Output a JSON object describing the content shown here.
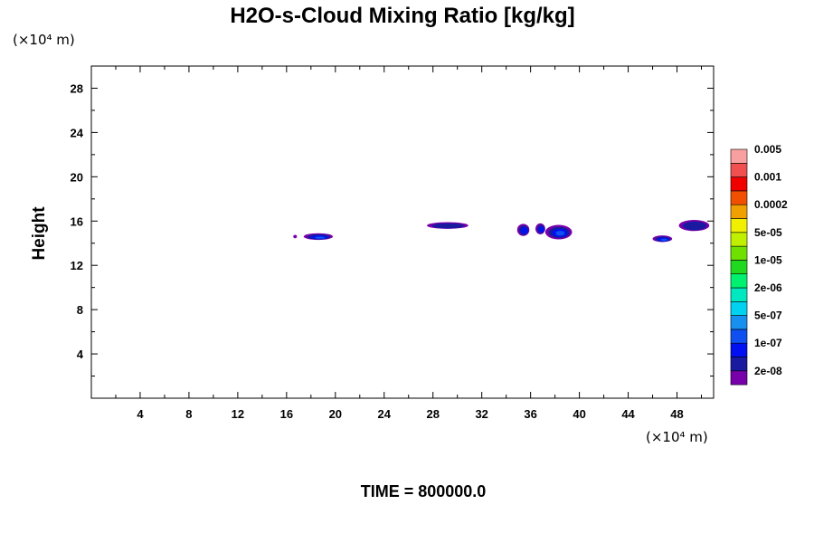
{
  "chart_data": {
    "type": "contour",
    "title": "H2O-s-Cloud Mixing Ratio [kg/kg]",
    "ylabel": "Height",
    "xlabel": "",
    "x_unit": "(×10⁴ m)",
    "y_unit": "(×10⁴ m)",
    "footer": "TIME = 800000.0",
    "xlim": [
      0,
      51
    ],
    "ylim": [
      0,
      30
    ],
    "x_ticks": [
      4,
      8,
      12,
      16,
      20,
      24,
      28,
      32,
      36,
      40,
      44,
      48
    ],
    "y_ticks": [
      4,
      8,
      12,
      16,
      20,
      24,
      28
    ],
    "grid": false,
    "colorbar": {
      "colors": [
        "#7700aa",
        "#1a1aa0",
        "#0010f0",
        "#1050f0",
        "#1890f0",
        "#00d2f0",
        "#00e8c0",
        "#00f070",
        "#20d820",
        "#70e000",
        "#c0f000",
        "#f0f000",
        "#f0a000",
        "#f05000",
        "#f00000",
        "#f05050",
        "#f8a0a0"
      ],
      "labels": [
        "2e-08",
        "1e-07",
        "5e-07",
        "2e-06",
        "1e-05",
        "5e-05",
        "0.0002",
        "0.001",
        "0.005"
      ]
    },
    "cloud_patches": [
      {
        "x": 16.7,
        "y": 14.6,
        "width": 0.3,
        "height": 0.3,
        "level": 0
      },
      {
        "x": 18.6,
        "y": 14.6,
        "width": 2.4,
        "height": 0.6,
        "level": 3
      },
      {
        "x": 29.2,
        "y": 15.6,
        "width": 3.4,
        "height": 0.6,
        "level": 1
      },
      {
        "x": 35.4,
        "y": 15.2,
        "width": 1.0,
        "height": 1.1,
        "level": 2
      },
      {
        "x": 36.8,
        "y": 15.3,
        "width": 0.8,
        "height": 1.0,
        "level": 2
      },
      {
        "x": 38.3,
        "y": 15.0,
        "width": 2.2,
        "height": 1.3,
        "level": 3
      },
      {
        "x": 46.8,
        "y": 14.4,
        "width": 1.6,
        "height": 0.6,
        "level": 3
      },
      {
        "x": 49.4,
        "y": 15.6,
        "width": 2.5,
        "height": 1.0,
        "level": 1
      }
    ]
  }
}
